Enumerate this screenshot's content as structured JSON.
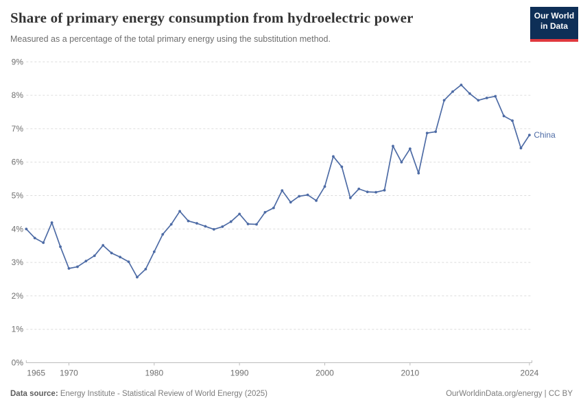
{
  "header": {
    "title": "Share of primary energy consumption from hydroelectric power",
    "subtitle": "Measured as a percentage of the total primary energy using the substitution method.",
    "logo_line1": "Our World",
    "logo_line2": "in Data"
  },
  "footer": {
    "source_label": "Data source:",
    "source_text": " Energy Institute - Statistical Review of World Energy (2025)",
    "right_text": "OurWorldinData.org/energy | CC BY"
  },
  "chart_data": {
    "type": "line",
    "title": "Share of primary energy consumption from hydroelectric power",
    "xlabel": "",
    "ylabel": "",
    "xlim": [
      1965,
      2024
    ],
    "ylim": [
      0,
      9
    ],
    "grid": "horizontal-dashed",
    "legend_position": "end-of-line",
    "x_start_year": 1965,
    "y_tick_labels": [
      "0%",
      "1%",
      "2%",
      "3%",
      "4%",
      "5%",
      "6%",
      "7%",
      "8%",
      "9%"
    ],
    "x_ticks": [
      {
        "year": 1965,
        "label": "1965",
        "anchor": "start"
      },
      {
        "year": 1970,
        "label": "1970",
        "anchor": "middle"
      },
      {
        "year": 1980,
        "label": "1980",
        "anchor": "middle"
      },
      {
        "year": 1990,
        "label": "1990",
        "anchor": "middle"
      },
      {
        "year": 2000,
        "label": "2000",
        "anchor": "middle"
      },
      {
        "year": 2010,
        "label": "2010",
        "anchor": "middle"
      },
      {
        "year": 2024,
        "label": "2024",
        "anchor": "middle"
      }
    ],
    "series": [
      {
        "name": "China",
        "color": "#4d6ba5",
        "values": [
          4.0,
          3.73,
          3.59,
          4.19,
          3.47,
          2.82,
          2.87,
          3.04,
          3.2,
          3.51,
          3.28,
          3.16,
          3.02,
          2.56,
          2.8,
          3.32,
          3.84,
          4.14,
          4.53,
          4.24,
          4.17,
          4.08,
          3.99,
          4.07,
          4.22,
          4.45,
          4.15,
          4.14,
          4.5,
          4.63,
          5.15,
          4.8,
          4.98,
          5.02,
          4.85,
          5.27,
          6.17,
          5.86,
          4.93,
          5.2,
          5.11,
          5.1,
          5.16,
          6.48,
          6.0,
          6.4,
          5.67,
          6.87,
          6.91,
          7.85,
          8.11,
          8.31,
          8.05,
          7.85,
          7.92,
          7.97,
          7.38,
          7.24,
          6.42,
          6.81
        ]
      }
    ],
    "colors": {
      "gridline": "#dcdcdc",
      "axis": "#bbbbbb",
      "tick_label": "#6e6e6e"
    }
  }
}
